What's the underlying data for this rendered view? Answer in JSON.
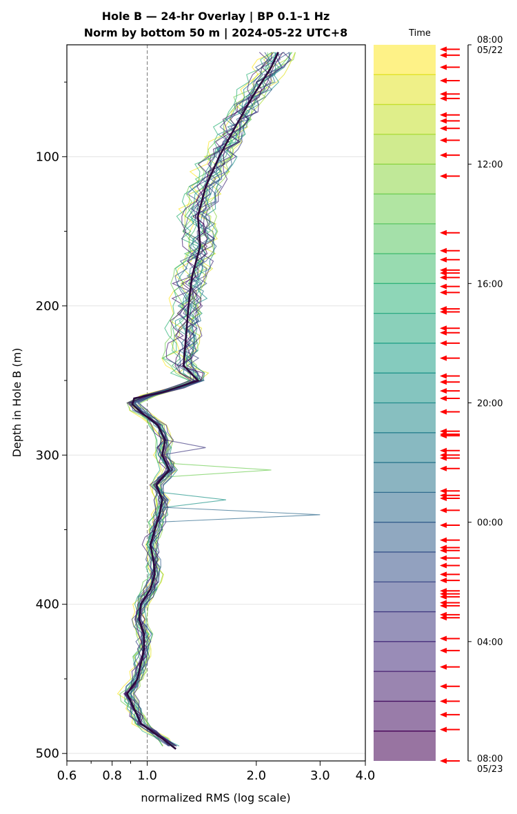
{
  "chart_data": {
    "type": "line",
    "title": [
      "Hole B — 24-hr Overlay  |  BP 0.1–1 Hz",
      "Norm by bottom 50 m  |  2024-05-22 UTC+8"
    ],
    "xlabel": "normalized RMS  (log scale)",
    "ylabel": "Depth in Hole B (m)",
    "xscale": "log",
    "xlim": [
      0.6,
      4.0
    ],
    "ylim": [
      505,
      25
    ],
    "x_ticks": [
      0.6,
      0.8,
      1.0,
      2.0,
      3.0,
      4.0
    ],
    "x_tick_labels": [
      "0.6",
      "0.8",
      "1.0",
      "2.0",
      "3.0",
      "4.0"
    ],
    "y_ticks": [
      100,
      200,
      300,
      400,
      500
    ],
    "y_tick_labels": [
      "100",
      "200",
      "300",
      "400",
      "500"
    ],
    "reference_line": {
      "x": 1.0,
      "style": "dashed"
    },
    "grid": "horizontal",
    "mean_profile": {
      "depth": [
        30,
        40,
        60,
        80,
        100,
        120,
        140,
        160,
        180,
        200,
        220,
        240,
        250,
        258,
        262,
        266,
        272,
        280,
        290,
        300,
        310,
        320,
        330,
        340,
        350,
        360,
        370,
        380,
        390,
        400,
        410,
        420,
        430,
        440,
        450,
        460,
        470,
        480,
        490,
        497
      ],
      "x": [
        2.3,
        2.2,
        1.95,
        1.75,
        1.58,
        1.45,
        1.38,
        1.4,
        1.33,
        1.3,
        1.28,
        1.26,
        1.38,
        1.1,
        0.92,
        0.91,
        0.97,
        1.07,
        1.12,
        1.1,
        1.15,
        1.06,
        1.1,
        1.08,
        1.05,
        1.02,
        1.04,
        1.05,
        1.02,
        0.96,
        0.95,
        0.98,
        0.98,
        0.96,
        0.94,
        0.88,
        0.92,
        0.96,
        1.1,
        1.2
      ]
    },
    "series_note": "one profile per time window across 24 h, colored by time on the viridis colorbar",
    "colorbar": {
      "label": "Time",
      "colormap": [
        "#fde725",
        "#b5de2b",
        "#6ece58",
        "#35b779",
        "#1f9e89",
        "#26828e",
        "#31688e",
        "#3e4989",
        "#482878",
        "#440154"
      ],
      "tick_labels": [
        [
          "08:00",
          "05/22"
        ],
        [
          "12:00"
        ],
        [
          "16:00"
        ],
        [
          "20:00"
        ],
        [
          "00:00"
        ],
        [
          "04:00"
        ],
        [
          "08:00",
          "05/23"
        ]
      ],
      "tick_hours": [
        0,
        4,
        8,
        12,
        16,
        20,
        24
      ],
      "segments": 24
    },
    "event_markers_hours": [
      0.15,
      0.35,
      0.75,
      1.2,
      1.65,
      1.8,
      2.35,
      2.55,
      2.8,
      3.2,
      3.7,
      4.4,
      6.3,
      6.9,
      7.2,
      7.55,
      7.65,
      7.8,
      8.1,
      8.3,
      8.85,
      8.95,
      9.5,
      9.65,
      10.0,
      10.5,
      11.1,
      11.3,
      11.6,
      11.85,
      12.3,
      12.95,
      13.05,
      13.1,
      13.6,
      13.75,
      13.85,
      14.2,
      14.95,
      15.1,
      15.2,
      15.6,
      16.1,
      16.6,
      16.85,
      16.95,
      17.2,
      17.45,
      17.75,
      17.95,
      18.3,
      18.4,
      18.5,
      18.7,
      18.8,
      19.1,
      19.2,
      19.9,
      20.3,
      20.85,
      21.5,
      22.0,
      22.45,
      22.95,
      24.0
    ]
  }
}
